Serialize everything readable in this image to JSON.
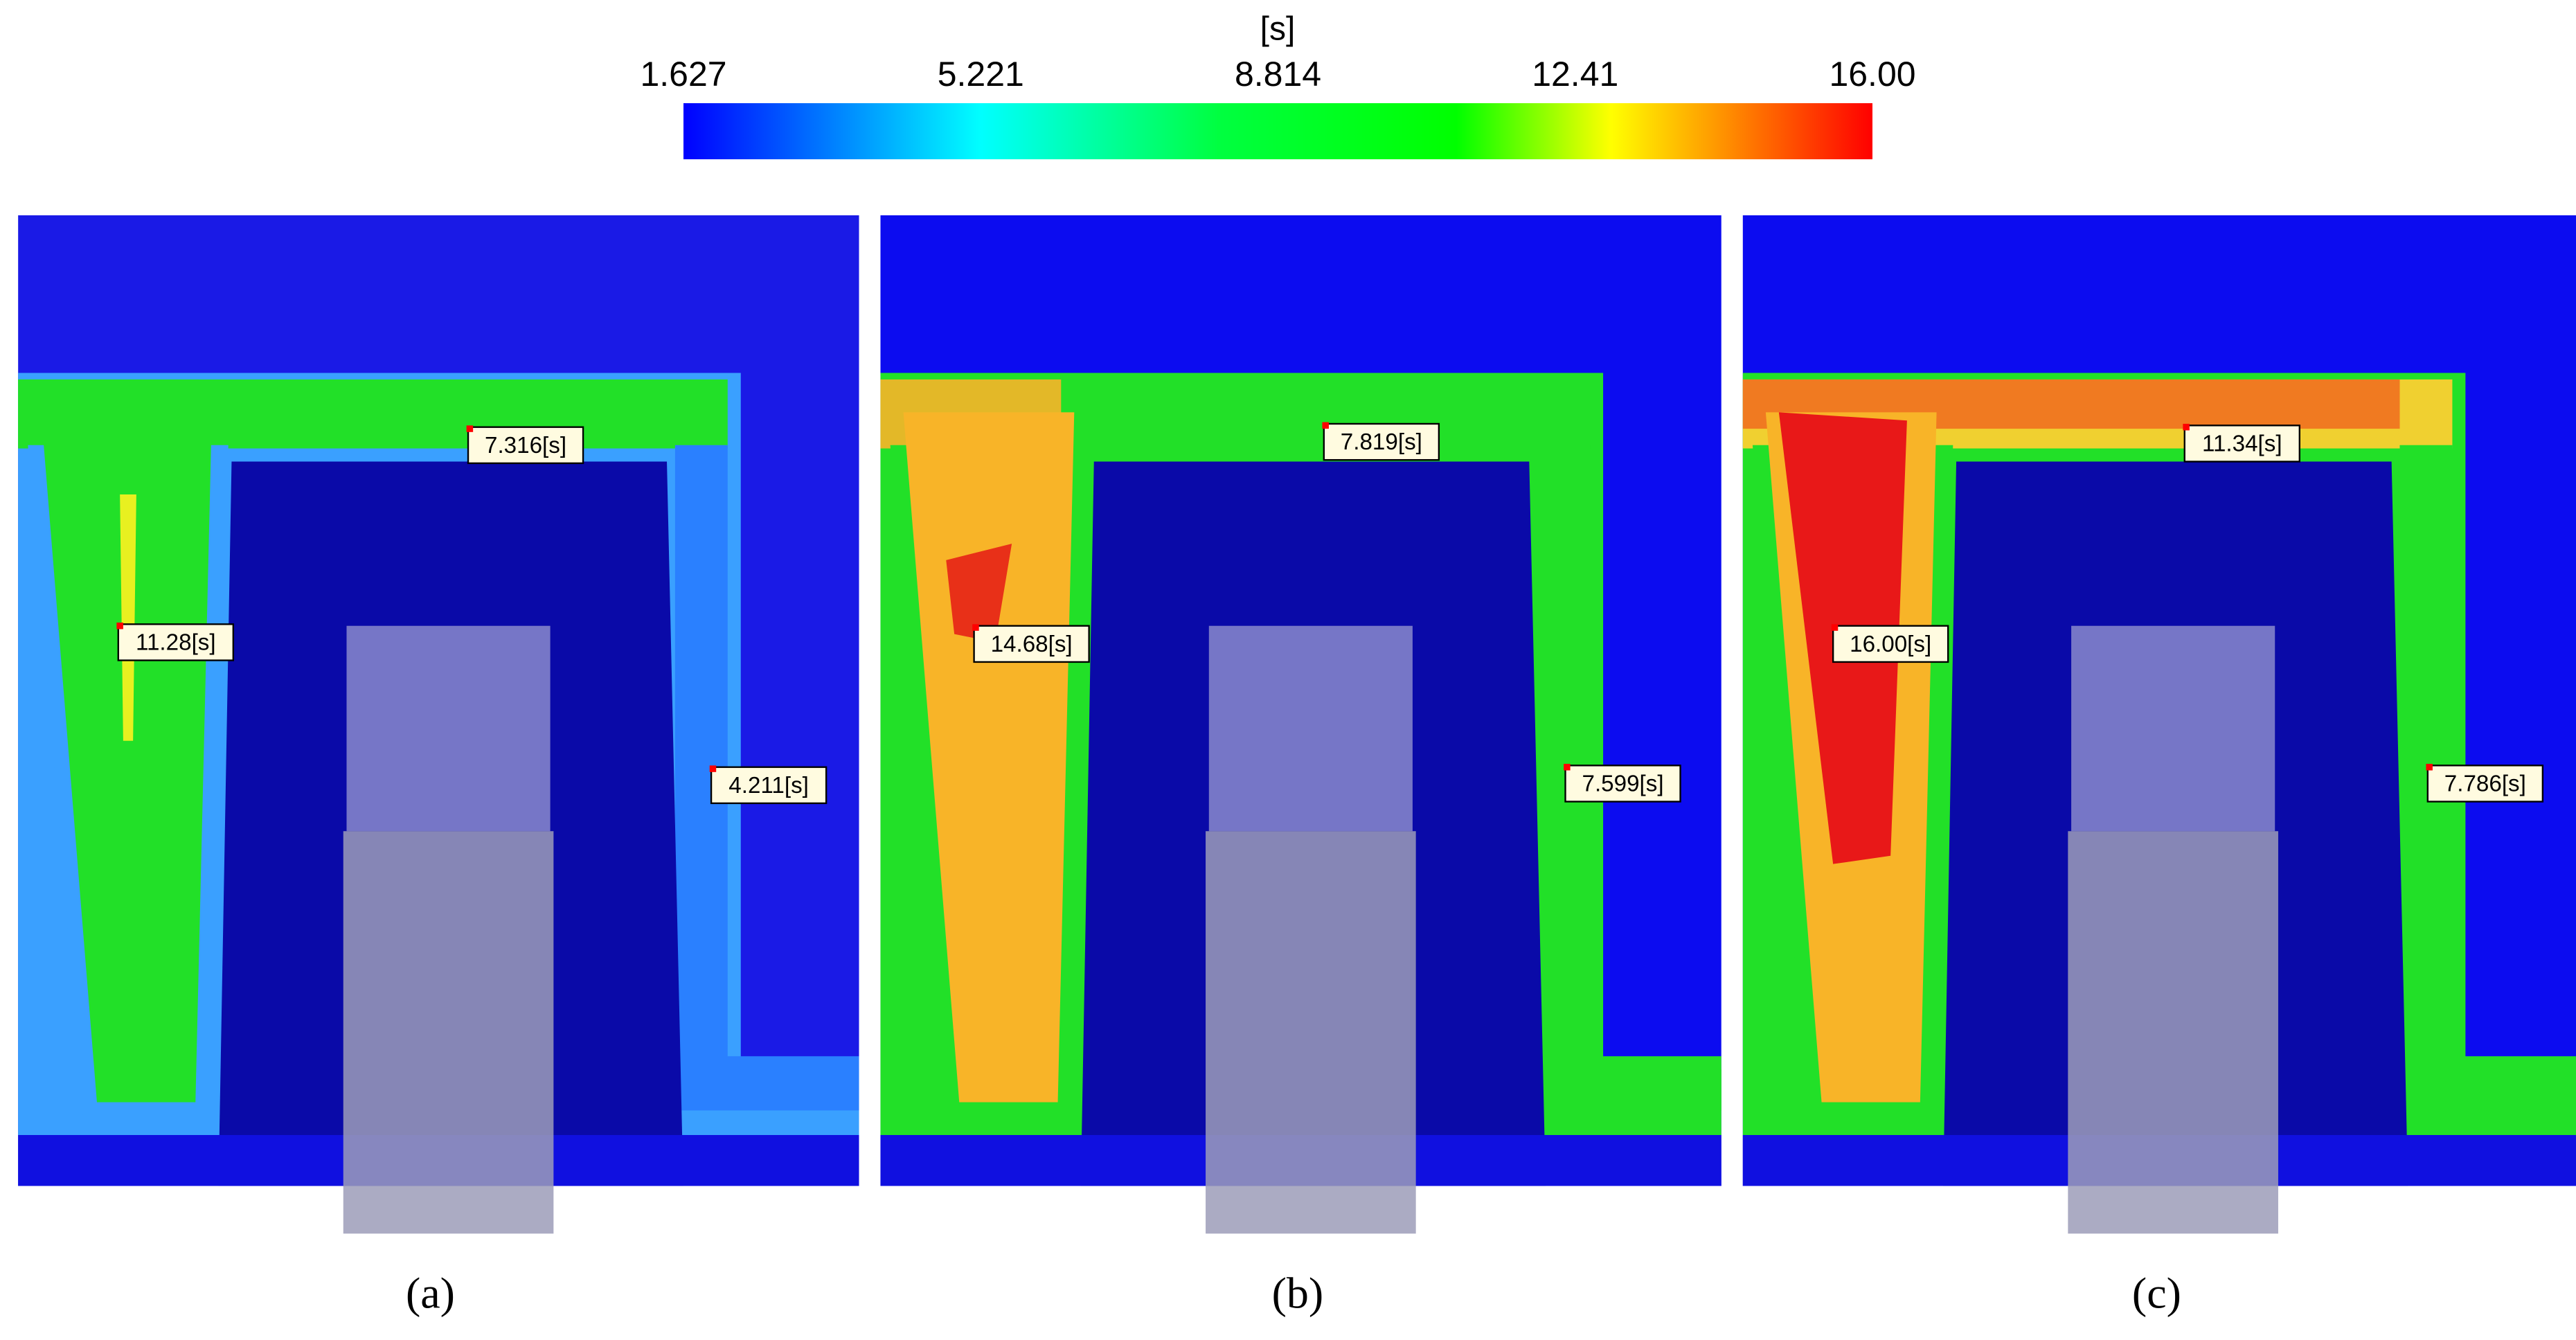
{
  "colorbar": {
    "unit": "[s]",
    "ticks": [
      "1.627",
      "5.221",
      "8.814",
      "12.41",
      "16.00"
    ]
  },
  "panels": [
    {
      "caption": "(a)",
      "probes": [
        "7.316[s]",
        "11.28[s]",
        "4.211[s]"
      ]
    },
    {
      "caption": "(b)",
      "probes": [
        "7.819[s]",
        "14.68[s]",
        "7.599[s]"
      ]
    },
    {
      "caption": "(c)",
      "probes": [
        "11.34[s]",
        "16.00[s]",
        "7.786[s]"
      ]
    }
  ]
}
